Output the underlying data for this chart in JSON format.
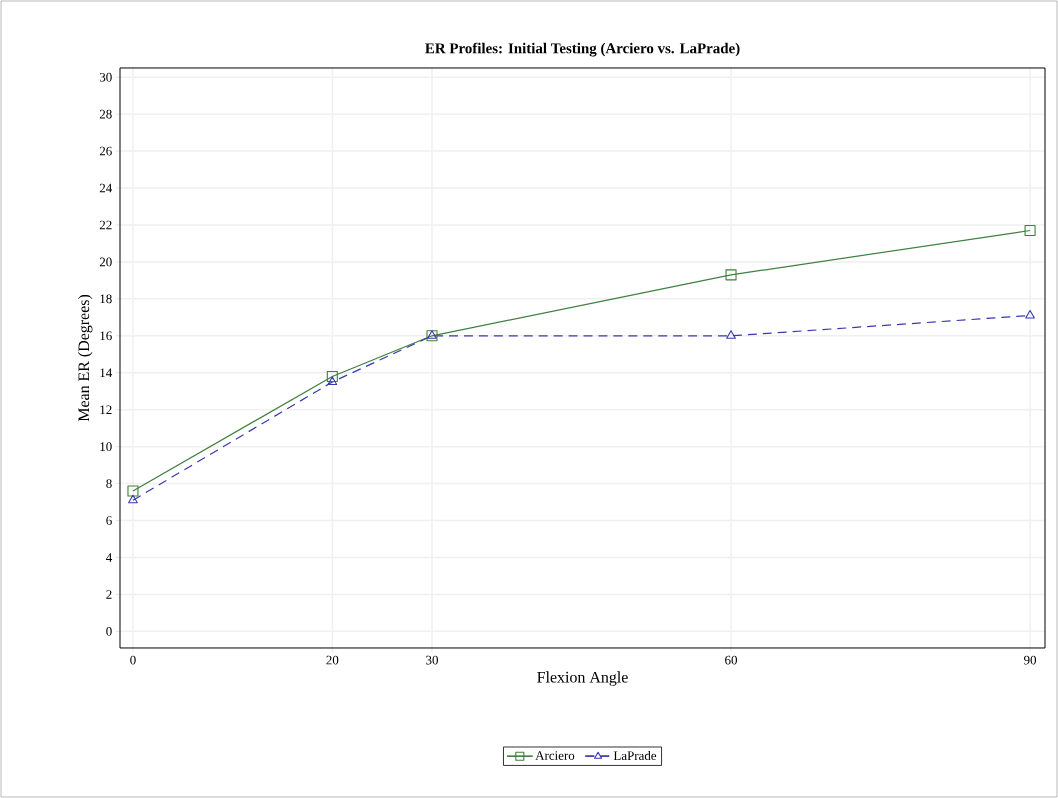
{
  "chart_data": {
    "type": "line",
    "title": "ER Profiles: Initial Testing (Arciero vs. LaPrade)",
    "xlabel": "Flexion Angle",
    "ylabel": "Mean ER (Degrees)",
    "x": [
      0,
      20,
      30,
      60,
      90
    ],
    "series": [
      {
        "name": "Arciero",
        "color": "#3f7f3f",
        "values": [
          7.6,
          13.8,
          16.0,
          19.3,
          21.7
        ],
        "marker": "square",
        "line_style": "solid"
      },
      {
        "name": "LaPrade",
        "color": "#3838b0",
        "values": [
          7.1,
          13.5,
          16.0,
          16.0,
          17.1
        ],
        "marker": "triangle",
        "line_style": "dashed"
      }
    ],
    "xlim": [
      -1.3,
      91.5
    ],
    "ylim": [
      -0.9,
      30.5
    ],
    "xticks": [
      0,
      20,
      30,
      60,
      90
    ],
    "yticks": [
      0,
      2,
      4,
      6,
      8,
      10,
      12,
      14,
      16,
      18,
      20,
      22,
      24,
      26,
      28,
      30
    ],
    "grid": true,
    "legend": "bottom"
  }
}
